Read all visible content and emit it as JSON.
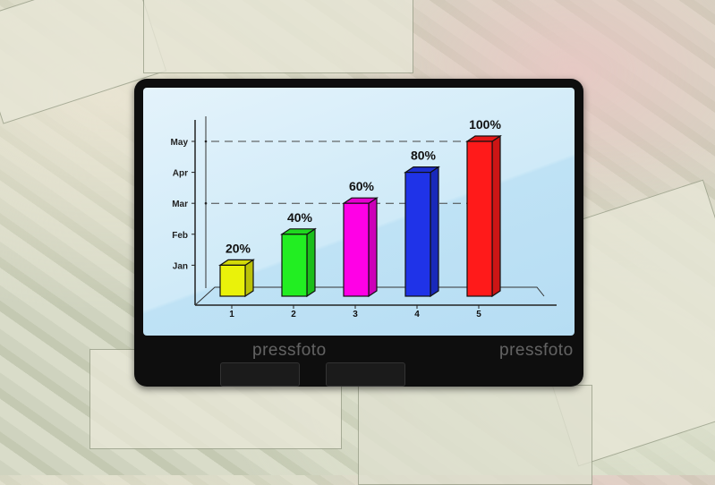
{
  "watermark": "pressfoto",
  "chart_data": {
    "type": "bar",
    "title": "",
    "xlabel": "",
    "ylabel": "",
    "categories": [
      "1",
      "2",
      "3",
      "4",
      "5"
    ],
    "y_tick_labels": [
      "Jan",
      "Feb",
      "Mar",
      "Apr",
      "May"
    ],
    "values": [
      1,
      2,
      3,
      4,
      5
    ],
    "data_labels": [
      "20%",
      "40%",
      "60%",
      "80%",
      "100%"
    ],
    "colors": [
      "#eaf20a",
      "#22ee22",
      "#ff00e6",
      "#1f33e8",
      "#ff1a1a"
    ],
    "ylim": [
      0,
      5
    ],
    "reference_lines": [
      "Mar",
      "May"
    ],
    "grid": false,
    "style": "3d"
  }
}
